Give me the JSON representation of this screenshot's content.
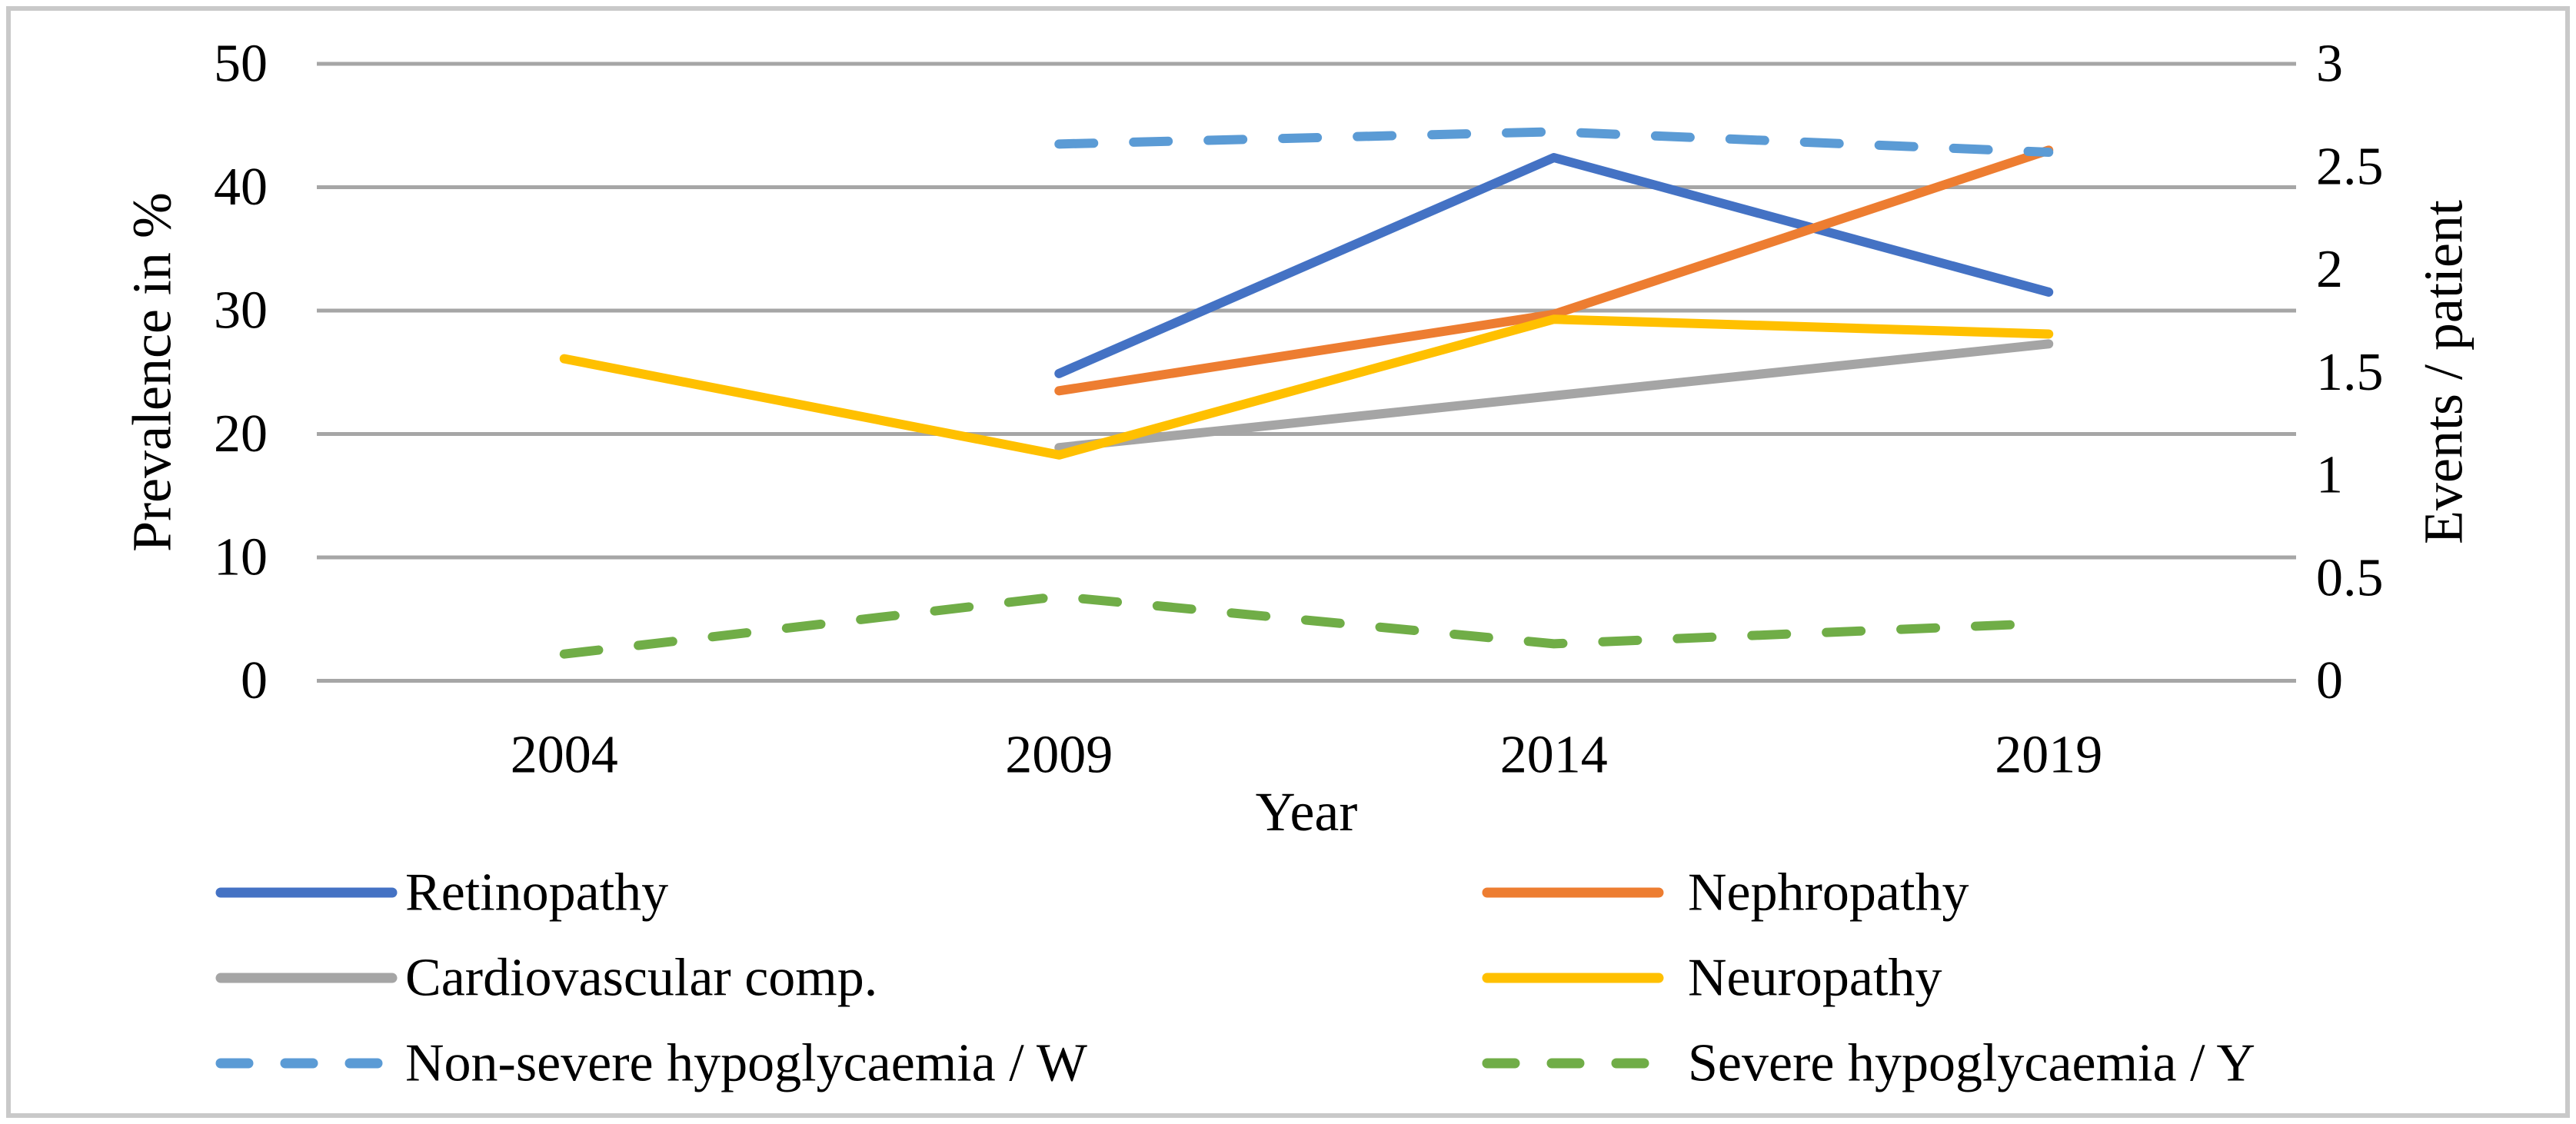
{
  "figure": {
    "background": "#ffffff",
    "border_color": "#c9c9c9",
    "gridline_color": "#a6a6a6",
    "text_color": "#000000"
  },
  "chart_data": {
    "type": "line",
    "title": "",
    "xlabel": "Year",
    "ylabel_left": "Prevalence in %",
    "ylabel_right": "Events / patient",
    "categories": [
      "2004",
      "2009",
      "2014",
      "2019"
    ],
    "left_axis": {
      "min": 0,
      "max": 50,
      "tick_labels": [
        "50",
        "40",
        "30",
        "20",
        "10",
        "0"
      ]
    },
    "right_axis": {
      "min": 0,
      "max": 3,
      "tick_labels": [
        "3",
        "2.5",
        "2",
        "1.5",
        "1",
        "0.5",
        "0"
      ]
    },
    "grid": true,
    "legend_position": "bottom-two-columns",
    "series": [
      {
        "name": "Retinopathy",
        "axis": "left",
        "color": "#4472C4",
        "style": "solid",
        "values": [
          null,
          24.9,
          42.4,
          31.5
        ]
      },
      {
        "name": "Nephropathy",
        "axis": "left",
        "color": "#ED7D31",
        "style": "solid",
        "values": [
          null,
          23.5,
          29.7,
          43.0
        ]
      },
      {
        "name": "Cardiovascular comp.",
        "axis": "left",
        "color": "#A5A5A5",
        "style": "solid",
        "values": [
          null,
          18.9,
          23.1,
          27.3
        ]
      },
      {
        "name": "Neuropathy",
        "axis": "left",
        "color": "#FFC000",
        "style": "solid",
        "values": [
          26.1,
          18.3,
          29.3,
          28.1
        ]
      },
      {
        "name": "Non-severe hypoglycaemia / W",
        "axis": "right",
        "color": "#5B9BD5",
        "style": "dashed",
        "values": [
          null,
          2.61,
          2.67,
          2.57
        ]
      },
      {
        "name": "Severe hypoglycaemia / Y",
        "axis": "right",
        "color": "#70AD47",
        "style": "dashed",
        "values": [
          0.13,
          0.41,
          0.18,
          0.28
        ]
      }
    ]
  }
}
